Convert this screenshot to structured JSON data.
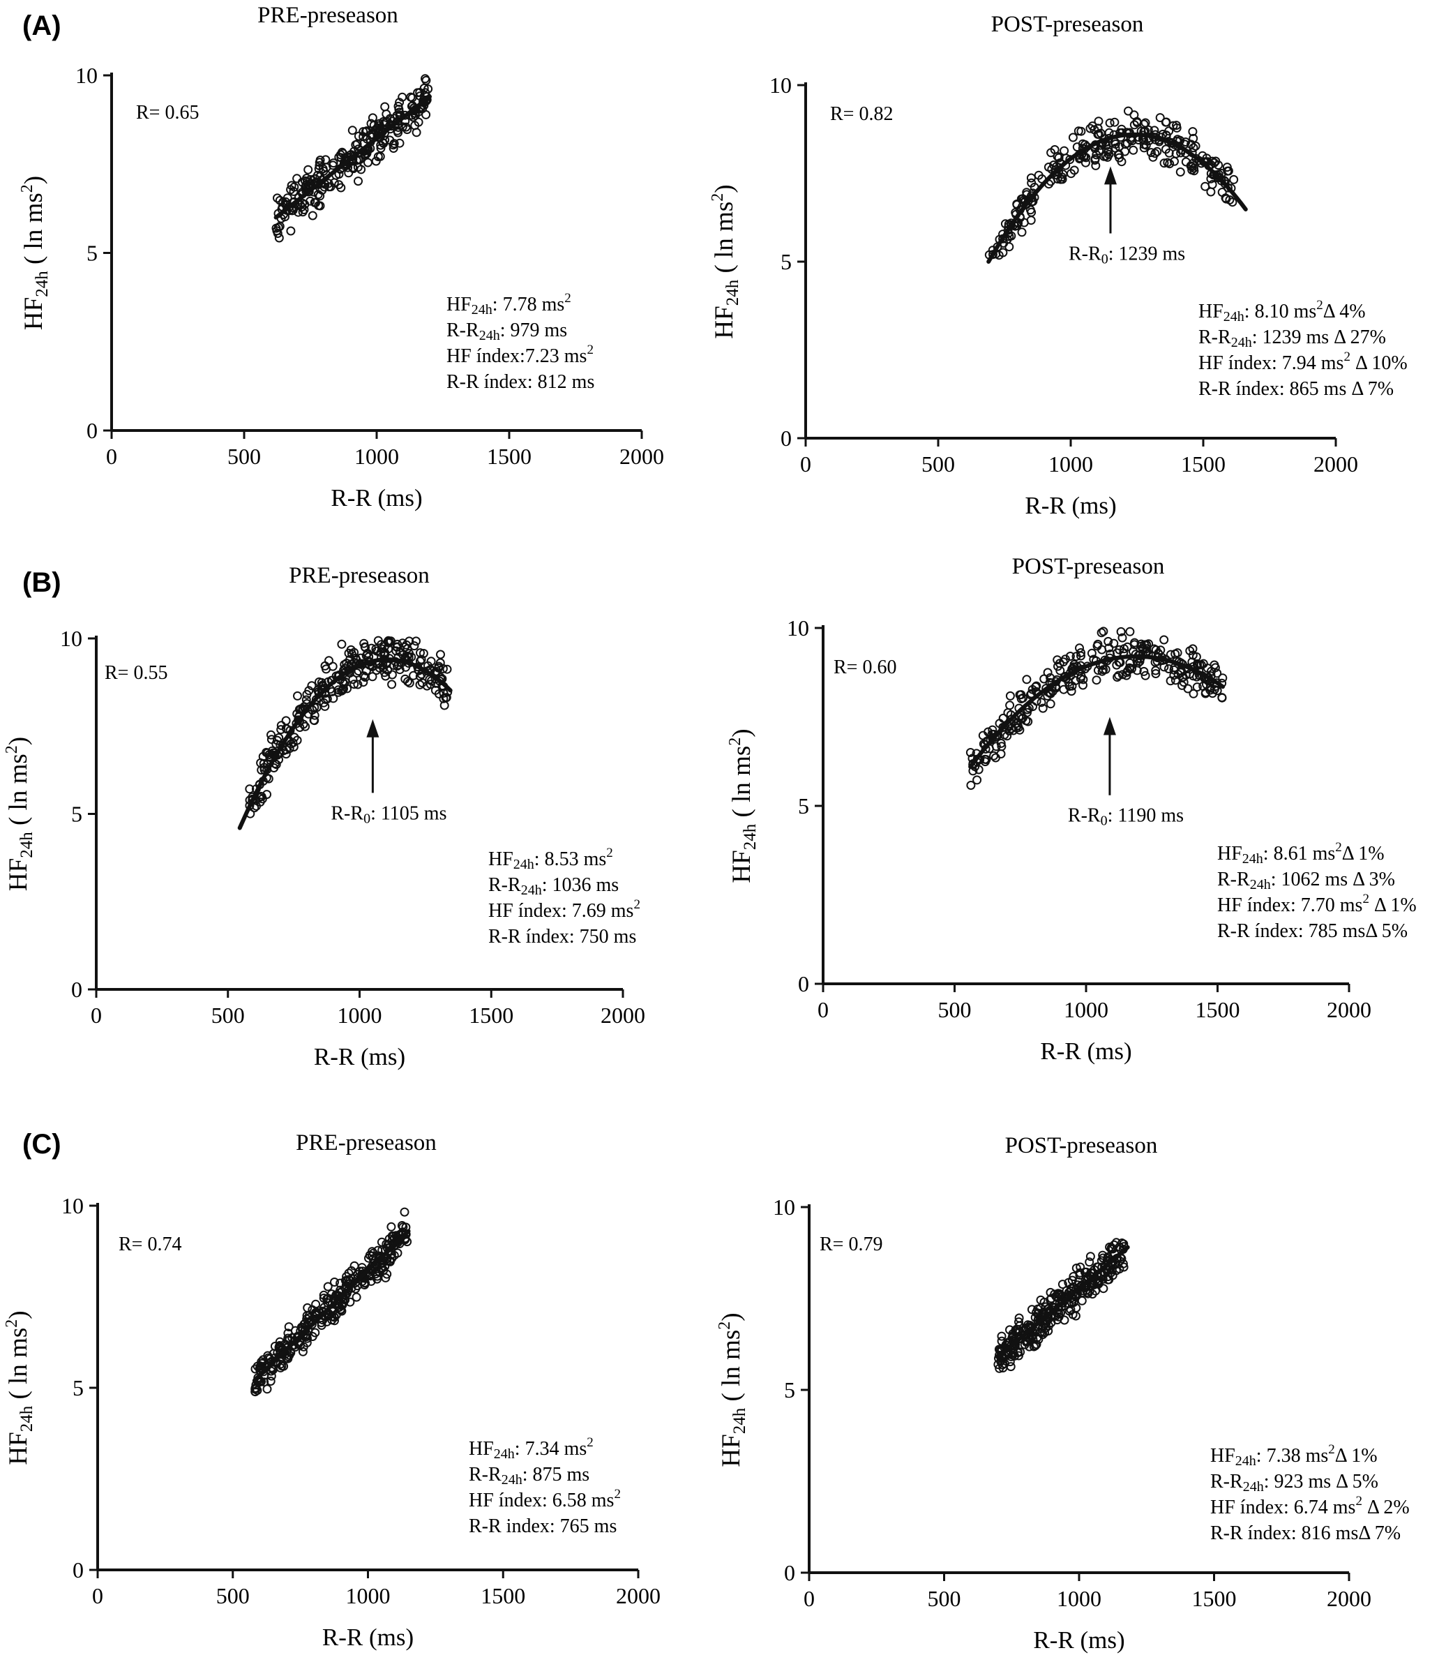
{
  "panels": [
    {
      "letter": "(A)"
    },
    {
      "letter": "(B)"
    },
    {
      "letter": "(C)"
    }
  ],
  "chart_data": [
    {
      "type": "scatter",
      "panel": "A",
      "title": "PRE-preseason",
      "xlabel": "R-R (ms)",
      "ylabel": "HF24h ( ln ms2)",
      "xlim": [
        0,
        2000
      ],
      "ylim": [
        0,
        10
      ],
      "xticks": [
        0,
        500,
        1000,
        1500,
        2000
      ],
      "yticks": [
        0,
        5,
        10
      ],
      "r_label": "R= 0.65",
      "fit": {
        "kind": "linear",
        "x": [
          620,
          1200
        ],
        "y": [
          6.0,
          9.4
        ]
      },
      "point_band": {
        "x_range": [
          620,
          1200
        ],
        "spread": 0.55,
        "count": 260
      },
      "stats": [
        {
          "name": "HF",
          "sub": "24h",
          "value": ": 7.78 ms",
          "sup": "2",
          "tail": ""
        },
        {
          "name": "R-R",
          "sub": "24h",
          "value": ": 979 ms",
          "sup": "",
          "tail": ""
        },
        {
          "name": "HF índex:7.23 ms",
          "sub": "",
          "value": "",
          "sup": "2",
          "tail": ""
        },
        {
          "name": "R-R índex: 812 ms",
          "sub": "",
          "value": "",
          "sup": "",
          "tail": ""
        }
      ]
    },
    {
      "type": "scatter",
      "panel": "A",
      "title": "POST-preseason",
      "xlabel": "R-R (ms)",
      "ylabel": "HF24h ( ln ms2)",
      "xlim": [
        0,
        2000
      ],
      "ylim": [
        0,
        10
      ],
      "xticks": [
        0,
        500,
        1000,
        1500,
        2000
      ],
      "yticks": [
        0,
        5,
        10
      ],
      "r_label": "R= 0.82",
      "fit": {
        "kind": "quadratic",
        "x0": 1239,
        "ymax": 8.6,
        "x": [
          690,
          1660
        ],
        "y_at_start": 5.0
      },
      "point_band": {
        "x_range": [
          690,
          1620
        ],
        "spread": 0.5,
        "count": 280
      },
      "arrow": {
        "x": 1150,
        "y_from": 5.8,
        "y_to": 7.7,
        "label": "R-R",
        "sub": "0",
        "text": ": 1239 ms"
      },
      "stats": [
        {
          "name": "HF",
          "sub": "24h",
          "value": ": 8.10 ms",
          "sup": "2",
          "tail": "Δ 4%"
        },
        {
          "name": "R-R",
          "sub": "24h",
          "value": ": 1239 ms Δ 27%",
          "sup": "",
          "tail": ""
        },
        {
          "name": "HF índex: 7.94 ms",
          "sub": "",
          "value": "",
          "sup": "2",
          "tail": " Δ 10%"
        },
        {
          "name": "R-R índex: 865 ms Δ 7%",
          "sub": "",
          "value": "",
          "sup": "",
          "tail": ""
        }
      ]
    },
    {
      "type": "scatter",
      "panel": "B",
      "title": "PRE-preseason",
      "xlabel": "R-R (ms)",
      "ylabel": "HF24h ( ln ms2)",
      "xlim": [
        0,
        2000
      ],
      "ylim": [
        0,
        10
      ],
      "xticks": [
        0,
        500,
        1000,
        1500,
        2000
      ],
      "yticks": [
        0,
        5,
        10
      ],
      "r_label": "R= 0.55",
      "fit": {
        "kind": "quadratic",
        "x0": 1105,
        "ymax": 9.4,
        "x": [
          545,
          1345
        ],
        "y_at_start": 4.6
      },
      "point_band": {
        "x_range": [
          580,
          1340
        ],
        "spread": 0.6,
        "count": 300
      },
      "arrow": {
        "x": 1050,
        "y_from": 5.6,
        "y_to": 7.7,
        "label": "R-R",
        "sub": "0",
        "text": ": 1105 ms"
      },
      "stats": [
        {
          "name": "HF",
          "sub": "24h",
          "value": ": 8.53 ms",
          "sup": "2",
          "tail": ""
        },
        {
          "name": "R-R",
          "sub": "24h",
          "value": ": 1036 ms",
          "sup": "",
          "tail": ""
        },
        {
          "name": "HF índex:  7.69 ms",
          "sub": "",
          "value": "",
          "sup": "2",
          "tail": ""
        },
        {
          "name": "R-R índex: 750 ms",
          "sub": "",
          "value": "",
          "sup": "",
          "tail": ""
        }
      ]
    },
    {
      "type": "scatter",
      "panel": "B",
      "title": "POST-preseason",
      "xlabel": "R-R (ms)",
      "ylabel": "HF24h ( ln ms2)",
      "xlim": [
        0,
        2000
      ],
      "ylim": [
        0,
        10
      ],
      "xticks": [
        0,
        500,
        1000,
        1500,
        2000
      ],
      "yticks": [
        0,
        5,
        10
      ],
      "r_label": "R= 0.60",
      "fit": {
        "kind": "quadratic",
        "x0": 1190,
        "ymax": 9.2,
        "x": [
          560,
          1520
        ],
        "y_at_start": 6.1
      },
      "point_band": {
        "x_range": [
          560,
          1520
        ],
        "spread": 0.55,
        "count": 300
      },
      "arrow": {
        "x": 1090,
        "y_from": 5.3,
        "y_to": 7.5,
        "label": "R-R",
        "sub": "0",
        "text": ": 1190 ms"
      },
      "stats": [
        {
          "name": "HF",
          "sub": "24h",
          "value": ": 8.61 ms",
          "sup": "2",
          "tail": "Δ 1%"
        },
        {
          "name": "R-R",
          "sub": "24h",
          "value": ": 1062 ms Δ 3%",
          "sup": "",
          "tail": ""
        },
        {
          "name": "HF índex: 7.70 ms",
          "sub": "",
          "value": "",
          "sup": "2",
          "tail": " Δ 1%"
        },
        {
          "name": "R-R índex: 785 msΔ 5%",
          "sub": "",
          "value": "",
          "sup": "",
          "tail": ""
        }
      ]
    },
    {
      "type": "scatter",
      "panel": "C",
      "title": "PRE-preseason",
      "xlabel": "R-R (ms)",
      "ylabel": "HF24h ( ln ms2)",
      "xlim": [
        0,
        2000
      ],
      "ylim": [
        0,
        10
      ],
      "xticks": [
        0,
        500,
        1000,
        1500,
        2000
      ],
      "yticks": [
        0,
        5,
        10
      ],
      "r_label": "R= 0.74",
      "fit": {
        "kind": "linear",
        "x": [
          580,
          1150
        ],
        "y": [
          5.2,
          9.3
        ]
      },
      "point_band": {
        "x_range": [
          580,
          1150
        ],
        "spread": 0.45,
        "count": 320
      },
      "stats": [
        {
          "name": "HF",
          "sub": "24h",
          "value": ": 7.34 ms",
          "sup": "2",
          "tail": ""
        },
        {
          "name": "R-R",
          "sub": "24h",
          "value": ": 875 ms",
          "sup": "",
          "tail": ""
        },
        {
          "name": "HF índex:  6.58 ms",
          "sub": "",
          "value": "",
          "sup": "2",
          "tail": ""
        },
        {
          "name": "R-R index: 765 ms",
          "sub": "",
          "value": "",
          "sup": "",
          "tail": ""
        }
      ]
    },
    {
      "type": "scatter",
      "panel": "C",
      "title": "POST-preseason",
      "xlabel": "R-R (ms)",
      "ylabel": "HF24h ( ln ms2)",
      "xlim": [
        0,
        2000
      ],
      "ylim": [
        0,
        10
      ],
      "xticks": [
        0,
        500,
        1000,
        1500,
        2000
      ],
      "yticks": [
        0,
        5,
        10
      ],
      "r_label": "R= 0.79",
      "fit": {
        "kind": "linear",
        "x": [
          700,
          1180
        ],
        "y": [
          5.9,
          8.9
        ]
      },
      "point_band": {
        "x_range": [
          700,
          1170
        ],
        "spread": 0.45,
        "count": 300
      },
      "stats": [
        {
          "name": "HF",
          "sub": "24h",
          "value": ": 7.38 ms",
          "sup": "2",
          "tail": "Δ 1%"
        },
        {
          "name": "R-R",
          "sub": "24h",
          "value": ": 923 ms Δ 5%",
          "sup": "",
          "tail": ""
        },
        {
          "name": "HF índex: 6.74 ms",
          "sub": "",
          "value": "",
          "sup": "2",
          "tail": " Δ 2%"
        },
        {
          "name": "R-R índex: 816 msΔ 7%",
          "sub": "",
          "value": "",
          "sup": "",
          "tail": ""
        }
      ]
    }
  ]
}
